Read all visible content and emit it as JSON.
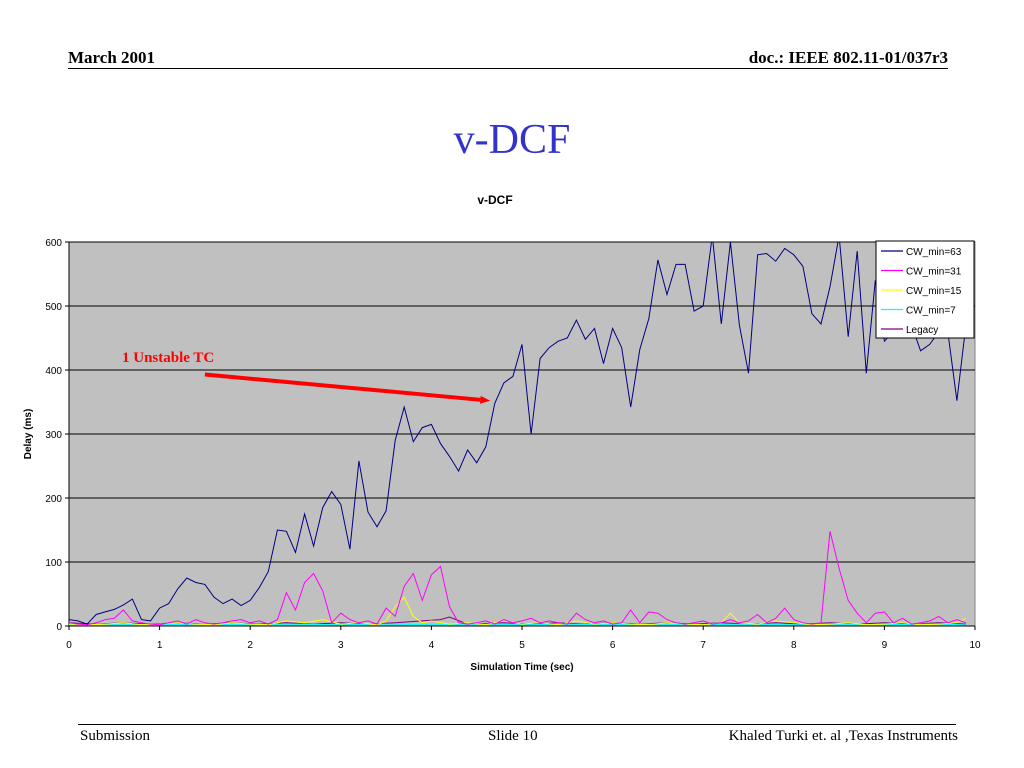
{
  "header": {
    "date": "March 2001",
    "doc": "doc.: IEEE 802.11-01/037r3"
  },
  "slide_title": "v-DCF",
  "footer": {
    "left": "Submission",
    "center": "Slide 10",
    "right": "Khaled Turki  et. al ,Texas Instruments"
  },
  "colors": {
    "title": "#3333cc",
    "plot_bg": "#c0c0c0",
    "annotation": "#ff0000"
  },
  "chart_data": {
    "type": "line",
    "title": "v-DCF",
    "xlabel": "Simulation Time (sec)",
    "ylabel": "Delay (ms)",
    "xlim": [
      0,
      10
    ],
    "ylim": [
      0,
      600
    ],
    "xticks": [
      0,
      1,
      2,
      3,
      4,
      5,
      6,
      7,
      8,
      9,
      10
    ],
    "yticks": [
      0,
      100,
      200,
      300,
      400,
      500,
      600
    ],
    "grid": "horizontal",
    "legend_position": "top-right",
    "annotation": {
      "text": "1 Unstable TC",
      "arrow_from": [
        1.5,
        393
      ],
      "arrow_to": [
        4.65,
        352
      ]
    },
    "series": [
      {
        "name": "CW_min=63",
        "color": "#000080",
        "x": [
          0.0,
          0.1,
          0.2,
          0.3,
          0.4,
          0.5,
          0.6,
          0.7,
          0.8,
          0.9,
          1.0,
          1.1,
          1.2,
          1.3,
          1.4,
          1.5,
          1.6,
          1.7,
          1.8,
          1.9,
          2.0,
          2.1,
          2.2,
          2.3,
          2.4,
          2.5,
          2.6,
          2.7,
          2.8,
          2.9,
          3.0,
          3.1,
          3.2,
          3.3,
          3.4,
          3.5,
          3.6,
          3.7,
          3.8,
          3.9,
          4.0,
          4.1,
          4.2,
          4.3,
          4.4,
          4.5,
          4.6,
          4.7,
          4.8,
          4.9,
          5.0,
          5.1,
          5.2,
          5.3,
          5.4,
          5.5,
          5.6,
          5.7,
          5.8,
          5.9,
          6.0,
          6.1,
          6.2,
          6.3,
          6.4,
          6.5,
          6.6,
          6.7,
          6.8,
          6.9,
          7.0,
          7.1,
          7.2,
          7.3,
          7.4,
          7.5,
          7.6,
          7.7,
          7.8,
          7.9,
          8.0,
          8.1,
          8.2,
          8.3,
          8.4,
          8.5,
          8.6,
          8.7,
          8.8,
          8.9,
          9.0,
          9.1,
          9.2,
          9.3,
          9.4,
          9.5,
          9.6,
          9.7,
          9.8,
          9.9
        ],
        "values": [
          10,
          8,
          3,
          18,
          22,
          26,
          33,
          42,
          10,
          8,
          28,
          35,
          58,
          75,
          68,
          65,
          45,
          35,
          42,
          32,
          40,
          60,
          85,
          150,
          148,
          115,
          175,
          125,
          185,
          210,
          190,
          120,
          258,
          178,
          155,
          180,
          290,
          342,
          288,
          310,
          315,
          285,
          265,
          242,
          275,
          255,
          280,
          348,
          380,
          390,
          440,
          300,
          418,
          435,
          445,
          450,
          478,
          448,
          465,
          410,
          465,
          435,
          342,
          432,
          480,
          572,
          518,
          565,
          565,
          492,
          500,
          610,
          472,
          600,
          470,
          395,
          580,
          582,
          570,
          590,
          580,
          562,
          488,
          472,
          530,
          610,
          452,
          586,
          395,
          540,
          445,
          460,
          450,
          470,
          430,
          440,
          460,
          460,
          352,
          470
        ]
      },
      {
        "name": "CW_min=31",
        "color": "#ff00ff",
        "x": [
          0.0,
          0.1,
          0.2,
          0.3,
          0.4,
          0.5,
          0.6,
          0.7,
          0.8,
          0.9,
          1.0,
          1.1,
          1.2,
          1.3,
          1.4,
          1.5,
          1.6,
          1.7,
          1.8,
          1.9,
          2.0,
          2.1,
          2.2,
          2.3,
          2.4,
          2.5,
          2.6,
          2.7,
          2.8,
          2.9,
          3.0,
          3.1,
          3.2,
          3.3,
          3.4,
          3.5,
          3.6,
          3.7,
          3.8,
          3.9,
          4.0,
          4.1,
          4.2,
          4.3,
          4.4,
          4.5,
          4.6,
          4.7,
          4.8,
          4.9,
          5.0,
          5.1,
          5.2,
          5.3,
          5.4,
          5.5,
          5.6,
          5.7,
          5.8,
          5.9,
          6.0,
          6.1,
          6.2,
          6.3,
          6.4,
          6.5,
          6.6,
          6.7,
          6.8,
          6.9,
          7.0,
          7.1,
          7.2,
          7.3,
          7.4,
          7.5,
          7.6,
          7.7,
          7.8,
          7.9,
          8.0,
          8.1,
          8.2,
          8.3,
          8.4,
          8.5,
          8.6,
          8.7,
          8.8,
          8.9,
          9.0,
          9.1,
          9.2,
          9.3,
          9.4,
          9.5,
          9.6,
          9.7,
          9.8,
          9.9
        ],
        "values": [
          5,
          3,
          2,
          5,
          10,
          12,
          25,
          8,
          5,
          3,
          2,
          5,
          8,
          3,
          10,
          5,
          3,
          5,
          8,
          10,
          5,
          8,
          3,
          10,
          52,
          25,
          68,
          82,
          55,
          5,
          20,
          10,
          5,
          8,
          3,
          28,
          15,
          62,
          82,
          40,
          80,
          93,
          30,
          5,
          3,
          5,
          8,
          3,
          10,
          5,
          8,
          12,
          5,
          8,
          5,
          3,
          20,
          10,
          5,
          8,
          3,
          5,
          25,
          5,
          22,
          20,
          10,
          5,
          3,
          5,
          8,
          3,
          5,
          10,
          5,
          8,
          18,
          5,
          12,
          28,
          10,
          5,
          3,
          5,
          148,
          90,
          40,
          20,
          5,
          20,
          22,
          5,
          12,
          3,
          5,
          8,
          15,
          5,
          10,
          5
        ]
      },
      {
        "name": "CW_min=15",
        "color": "#ffff00",
        "x": [
          0.0,
          0.2,
          0.4,
          0.6,
          0.8,
          1.0,
          1.2,
          1.4,
          1.6,
          1.8,
          2.0,
          2.2,
          2.4,
          2.6,
          2.8,
          3.0,
          3.2,
          3.4,
          3.5,
          3.6,
          3.7,
          3.8,
          3.9,
          4.0,
          4.2,
          4.4,
          4.6,
          4.8,
          5.0,
          5.2,
          5.4,
          5.6,
          5.8,
          6.0,
          6.2,
          6.4,
          6.6,
          6.8,
          7.0,
          7.2,
          7.3,
          7.4,
          7.6,
          7.8,
          8.0,
          8.2,
          8.4,
          8.6,
          8.8,
          9.0,
          9.2,
          9.4,
          9.6,
          9.8,
          9.9
        ],
        "values": [
          3,
          2,
          3,
          5,
          2,
          3,
          5,
          3,
          2,
          5,
          3,
          2,
          8,
          5,
          10,
          3,
          5,
          2,
          8,
          30,
          45,
          15,
          5,
          8,
          3,
          5,
          2,
          8,
          3,
          5,
          2,
          8,
          3,
          5,
          3,
          2,
          5,
          3,
          2,
          5,
          20,
          5,
          3,
          8,
          5,
          2,
          3,
          5,
          2,
          3,
          5,
          2,
          3,
          5,
          12
        ]
      },
      {
        "name": "CW_min=7",
        "color": "#00ffff",
        "x": [
          0.0,
          0.5,
          1.0,
          1.5,
          2.0,
          2.5,
          3.0,
          3.5,
          4.0,
          4.5,
          5.0,
          5.5,
          6.0,
          6.5,
          7.0,
          7.5,
          8.0,
          8.5,
          9.0,
          9.5,
          9.9
        ],
        "values": [
          2,
          3,
          2,
          3,
          2,
          3,
          2,
          3,
          2,
          3,
          2,
          3,
          2,
          3,
          2,
          3,
          2,
          3,
          2,
          3,
          2
        ]
      },
      {
        "name": "Legacy",
        "color": "#800080",
        "x": [
          0.0,
          0.3,
          0.6,
          0.9,
          1.2,
          1.5,
          1.8,
          2.1,
          2.4,
          2.7,
          3.0,
          3.3,
          3.6,
          3.9,
          4.1,
          4.2,
          4.4,
          4.8,
          5.1,
          5.4,
          5.7,
          6.0,
          6.3,
          6.6,
          6.9,
          7.2,
          7.5,
          7.8,
          8.1,
          8.4,
          8.7,
          9.0,
          9.3,
          9.6,
          9.9
        ],
        "values": [
          5,
          3,
          5,
          3,
          5,
          3,
          5,
          3,
          5,
          3,
          5,
          3,
          5,
          8,
          10,
          14,
          3,
          5,
          3,
          5,
          3,
          5,
          3,
          5,
          3,
          5,
          3,
          5,
          3,
          5,
          3,
          5,
          3,
          5,
          3
        ]
      }
    ]
  }
}
